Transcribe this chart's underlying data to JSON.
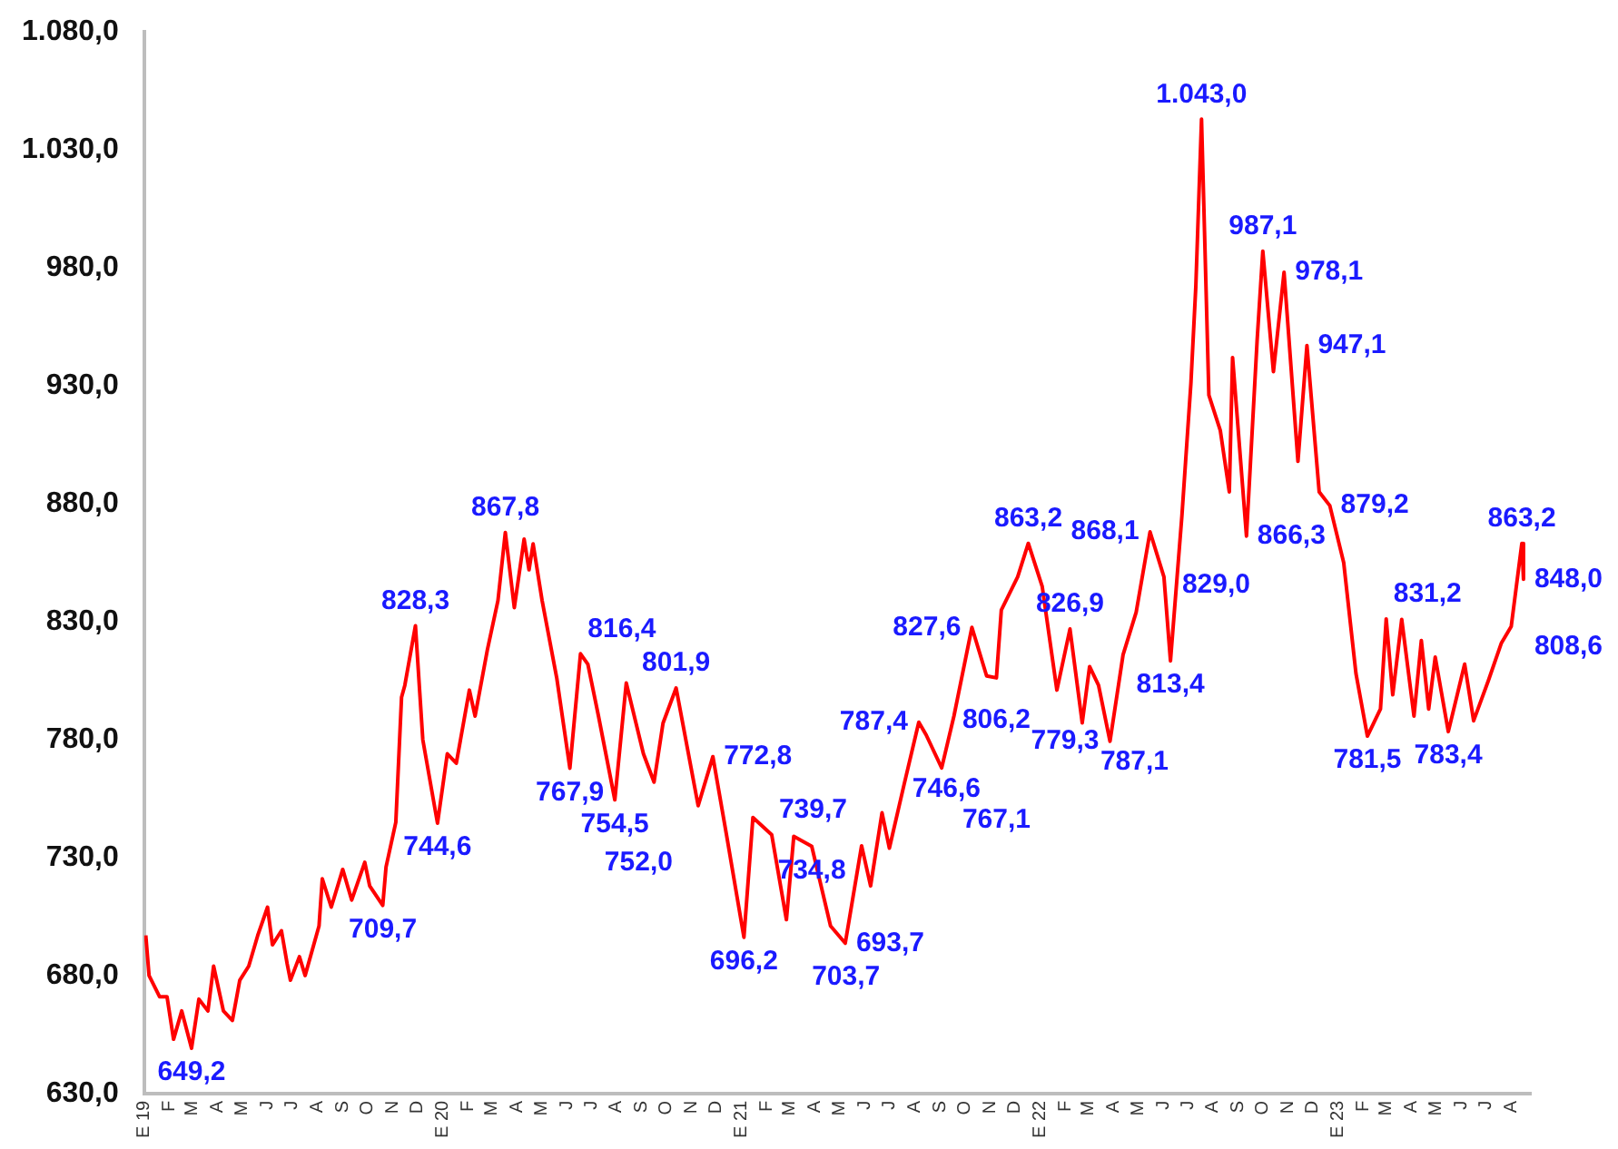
{
  "chart_data": {
    "type": "line",
    "marker": "none",
    "line_style": "solid",
    "grid": false,
    "legend": false,
    "x": [
      "2019-01-03",
      "2019-01-07",
      "2019-01-20",
      "2019-01-29",
      "2019-02-06",
      "2019-02-16",
      "2019-02-28",
      "2019-03-09",
      "2019-03-20",
      "2019-03-27",
      "2019-04-08",
      "2019-04-19",
      "2019-04-28",
      "2019-05-09",
      "2019-05-20",
      "2019-06-01",
      "2019-06-07",
      "2019-06-18",
      "2019-06-25",
      "2019-06-29",
      "2019-07-10",
      "2019-07-17",
      "2019-08-03",
      "2019-08-07",
      "2019-08-18",
      "2019-09-01",
      "2019-09-12",
      "2019-09-28",
      "2019-10-04",
      "2019-10-20",
      "2019-10-24",
      "2019-11-05",
      "2019-11-12",
      "2019-11-16",
      "2019-11-29",
      "2019-12-08",
      "2019-12-26",
      "2020-01-07",
      "2020-01-18",
      "2020-02-03",
      "2020-02-10",
      "2020-02-25",
      "2020-03-09",
      "2020-03-18",
      "2020-03-29",
      "2020-04-10",
      "2020-04-16",
      "2020-04-21",
      "2020-05-02",
      "2020-05-20",
      "2020-06-05",
      "2020-06-18",
      "2020-06-27",
      "2020-07-10",
      "2020-07-30",
      "2020-08-13",
      "2020-09-03",
      "2020-09-16",
      "2020-09-27",
      "2020-10-13",
      "2020-11-09",
      "2020-11-27",
      "2020-12-14",
      "2021-01-04",
      "2021-01-15",
      "2021-02-07",
      "2021-02-25",
      "2021-03-06",
      "2021-03-28",
      "2021-04-20",
      "2021-05-08",
      "2021-05-28",
      "2021-06-08",
      "2021-06-22",
      "2021-07-01",
      "2021-07-19",
      "2021-08-06",
      "2021-08-15",
      "2021-09-03",
      "2021-09-18",
      "2021-10-10",
      "2021-10-28",
      "2021-11-09",
      "2021-11-15",
      "2021-12-05",
      "2021-12-18",
      "2022-01-04",
      "2022-01-22",
      "2022-02-07",
      "2022-02-22",
      "2022-03-03",
      "2022-03-14",
      "2022-03-28",
      "2022-04-13",
      "2022-04-29",
      "2022-05-16",
      "2022-06-02",
      "2022-06-10",
      "2022-06-24",
      "2022-07-05",
      "2022-07-11",
      "2022-07-18",
      "2022-07-27",
      "2022-08-10",
      "2022-08-21",
      "2022-08-25",
      "2022-09-11",
      "2022-09-24",
      "2022-10-01",
      "2022-10-14",
      "2022-10-27",
      "2022-11-13",
      "2022-11-24",
      "2022-12-09",
      "2022-12-22",
      "2023-01-08",
      "2023-01-23",
      "2023-02-06",
      "2023-02-22",
      "2023-03-01",
      "2023-03-09",
      "2023-03-20",
      "2023-04-04",
      "2023-04-13",
      "2023-04-22",
      "2023-04-30",
      "2023-05-16",
      "2023-06-05",
      "2023-06-16",
      "2023-07-04",
      "2023-07-20",
      "2023-08-01",
      "2023-08-14",
      "2023-08-16"
    ],
    "values": [
      697,
      680,
      671,
      671,
      653,
      665,
      649.2,
      670,
      665,
      684,
      665,
      661,
      678,
      684,
      697,
      709,
      693,
      699,
      685,
      678,
      688,
      680,
      701,
      721,
      709,
      725,
      712,
      728,
      718,
      709.7,
      726,
      745,
      798,
      803,
      828.3,
      780,
      744.6,
      774,
      770,
      801,
      790,
      818,
      839,
      867.8,
      836,
      865,
      852,
      863,
      839,
      806,
      767.9,
      816.4,
      812,
      790,
      754.5,
      804,
      774,
      762,
      787,
      801.9,
      752,
      772.8,
      739,
      696.2,
      747,
      739.7,
      703.7,
      739,
      734.8,
      701,
      693.7,
      735,
      718,
      749,
      734,
      761,
      787.4,
      782,
      768,
      790,
      827.6,
      807,
      806.2,
      835,
      849,
      863.2,
      845,
      801,
      826.9,
      787.1,
      811,
      803,
      779.3,
      816,
      834,
      868.1,
      849,
      813.4,
      875,
      931,
      972,
      1043,
      926,
      911,
      885,
      942,
      866.3,
      949,
      987.1,
      936,
      978.1,
      898,
      947.1,
      885,
      879.2,
      855,
      808,
      781.5,
      793,
      831.2,
      799,
      831,
      790,
      822,
      793,
      815,
      783.4,
      812,
      788,
      805,
      821,
      828,
      863.2,
      848
    ],
    "color": "#ff0000",
    "ylim": [
      630,
      1080
    ],
    "yticks": [
      {
        "value": 630,
        "label": "630,0"
      },
      {
        "value": 680,
        "label": "680,0"
      },
      {
        "value": 730,
        "label": "730,0"
      },
      {
        "value": 780,
        "label": "780,0"
      },
      {
        "value": 830,
        "label": "830,0"
      },
      {
        "value": 880,
        "label": "880,0"
      },
      {
        "value": 930,
        "label": "930,0"
      },
      {
        "value": 980,
        "label": "980,0"
      },
      {
        "value": 1030,
        "label": "1.030,0"
      },
      {
        "value": 1080,
        "label": "1.080,0"
      }
    ],
    "xlim": [
      "2019-01-01",
      "2023-08-25"
    ],
    "xticks": [
      {
        "value": "2019-01-01",
        "label": "E 19"
      },
      {
        "value": "2019-02-01",
        "label": "F"
      },
      {
        "value": "2019-03-01",
        "label": "M"
      },
      {
        "value": "2019-04-01",
        "label": "A"
      },
      {
        "value": "2019-05-01",
        "label": "M"
      },
      {
        "value": "2019-06-01",
        "label": "J"
      },
      {
        "value": "2019-07-01",
        "label": "J"
      },
      {
        "value": "2019-08-01",
        "label": "A"
      },
      {
        "value": "2019-09-01",
        "label": "S"
      },
      {
        "value": "2019-10-01",
        "label": "O"
      },
      {
        "value": "2019-11-01",
        "label": "N"
      },
      {
        "value": "2019-12-01",
        "label": "D"
      },
      {
        "value": "2020-01-01",
        "label": "E 20"
      },
      {
        "value": "2020-02-01",
        "label": "F"
      },
      {
        "value": "2020-03-01",
        "label": "M"
      },
      {
        "value": "2020-04-01",
        "label": "A"
      },
      {
        "value": "2020-05-01",
        "label": "M"
      },
      {
        "value": "2020-06-01",
        "label": "J"
      },
      {
        "value": "2020-07-01",
        "label": "J"
      },
      {
        "value": "2020-08-01",
        "label": "A"
      },
      {
        "value": "2020-09-01",
        "label": "S"
      },
      {
        "value": "2020-10-01",
        "label": "O"
      },
      {
        "value": "2020-11-01",
        "label": "N"
      },
      {
        "value": "2020-12-01",
        "label": "D"
      },
      {
        "value": "2021-01-01",
        "label": "E 21"
      },
      {
        "value": "2021-02-01",
        "label": "F"
      },
      {
        "value": "2021-03-01",
        "label": "M"
      },
      {
        "value": "2021-04-01",
        "label": "A"
      },
      {
        "value": "2021-05-01",
        "label": "M"
      },
      {
        "value": "2021-06-01",
        "label": "J"
      },
      {
        "value": "2021-07-01",
        "label": "J"
      },
      {
        "value": "2021-08-01",
        "label": "A"
      },
      {
        "value": "2021-09-01",
        "label": "S"
      },
      {
        "value": "2021-10-01",
        "label": "O"
      },
      {
        "value": "2021-11-01",
        "label": "N"
      },
      {
        "value": "2021-12-01",
        "label": "D"
      },
      {
        "value": "2022-01-01",
        "label": "E 22"
      },
      {
        "value": "2022-02-01",
        "label": "F"
      },
      {
        "value": "2022-03-01",
        "label": "M"
      },
      {
        "value": "2022-04-01",
        "label": "A"
      },
      {
        "value": "2022-05-01",
        "label": "M"
      },
      {
        "value": "2022-06-01",
        "label": "J"
      },
      {
        "value": "2022-07-01",
        "label": "J"
      },
      {
        "value": "2022-08-01",
        "label": "A"
      },
      {
        "value": "2022-09-01",
        "label": "S"
      },
      {
        "value": "2022-10-01",
        "label": "O"
      },
      {
        "value": "2022-11-01",
        "label": "N"
      },
      {
        "value": "2022-12-01",
        "label": "D"
      },
      {
        "value": "2023-01-01",
        "label": "E 23"
      },
      {
        "value": "2023-02-01",
        "label": "F"
      },
      {
        "value": "2023-03-01",
        "label": "M"
      },
      {
        "value": "2023-04-01",
        "label": "A"
      },
      {
        "value": "2023-05-01",
        "label": "M"
      },
      {
        "value": "2023-06-01",
        "label": "J"
      },
      {
        "value": "2023-07-01",
        "label": "J"
      },
      {
        "value": "2023-08-01",
        "label": "A"
      }
    ],
    "annotations": [
      {
        "text": "649,2",
        "x": "2019-02-28",
        "y": 649.2
      },
      {
        "text": "709,7",
        "x": "2019-10-20",
        "y": 709.7
      },
      {
        "text": "828,3",
        "x": "2019-11-29",
        "y": 828.3
      },
      {
        "text": "744,6",
        "x": "2019-12-26",
        "y": 744.6
      },
      {
        "text": "867,8",
        "x": "2020-03-18",
        "y": 867.8
      },
      {
        "text": "767,9",
        "x": "2020-06-05",
        "y": 767.9
      },
      {
        "text": "816,4",
        "x": "2020-06-18",
        "y": 816.4
      },
      {
        "text": "754,5",
        "x": "2020-07-30",
        "y": 754.5
      },
      {
        "text": "801,9",
        "x": "2020-10-13",
        "y": 801.9
      },
      {
        "text": "752,0",
        "x": "2020-11-09",
        "y": 752.0
      },
      {
        "text": "772,8",
        "x": "2020-11-27",
        "y": 772.8
      },
      {
        "text": "696,2",
        "x": "2021-01-04",
        "y": 696.2
      },
      {
        "text": "739,7",
        "x": "2021-02-07",
        "y": 739.7
      },
      {
        "text": "703,7",
        "x": "2021-02-25",
        "y": 703.7
      },
      {
        "text": "734,8",
        "x": "2021-03-28",
        "y": 734.8
      },
      {
        "text": "693,7",
        "x": "2021-05-08",
        "y": 693.7
      },
      {
        "text": "787,4",
        "x": "2021-08-06",
        "y": 787.4
      },
      "746,6",
      {
        "text": "827,6",
        "x": "2021-10-10",
        "y": 827.6
      },
      {
        "text": "806,2",
        "x": "2021-11-09",
        "y": 806.2
      },
      "767,1",
      {
        "text": "863,2",
        "x": "2021-12-18",
        "y": 863.2
      },
      {
        "text": "826,9",
        "x": "2022-02-07",
        "y": 826.9
      },
      {
        "text": "787,1",
        "x": "2022-02-22",
        "y": 787.1
      },
      {
        "text": "779,3",
        "x": "2022-03-28",
        "y": 779.3
      },
      {
        "text": "868,1",
        "x": "2022-05-16",
        "y": 868.1
      },
      {
        "text": "829,0",
        "x": "2022-06-02",
        "y": 829.0
      },
      {
        "text": "813,4",
        "x": "2022-06-10",
        "y": 813.4
      },
      {
        "text": "1.043,0",
        "x": "2022-07-18",
        "y": 1043.0
      },
      {
        "text": "866,3",
        "x": "2022-09-11",
        "y": 866.3
      },
      {
        "text": "987,1",
        "x": "2022-10-01",
        "y": 987.1
      },
      {
        "text": "978,1",
        "x": "2022-10-27",
        "y": 978.1
      },
      {
        "text": "947,1",
        "x": "2022-11-24",
        "y": 947.1
      },
      {
        "text": "879,2",
        "x": "2022-12-22",
        "y": 879.2
      },
      {
        "text": "781,5",
        "x": "2023-02-06",
        "y": 781.5
      },
      {
        "text": "831,2",
        "x": "2023-03-01",
        "y": 831.2
      },
      {
        "text": "783,4",
        "x": "2023-05-16",
        "y": 783.4
      },
      {
        "text": "863,2",
        "x": "2023-08-14",
        "y": 863.2
      },
      {
        "text": "848,0",
        "x": "2023-08-16",
        "y": 848.0
      },
      "808,6"
    ]
  }
}
